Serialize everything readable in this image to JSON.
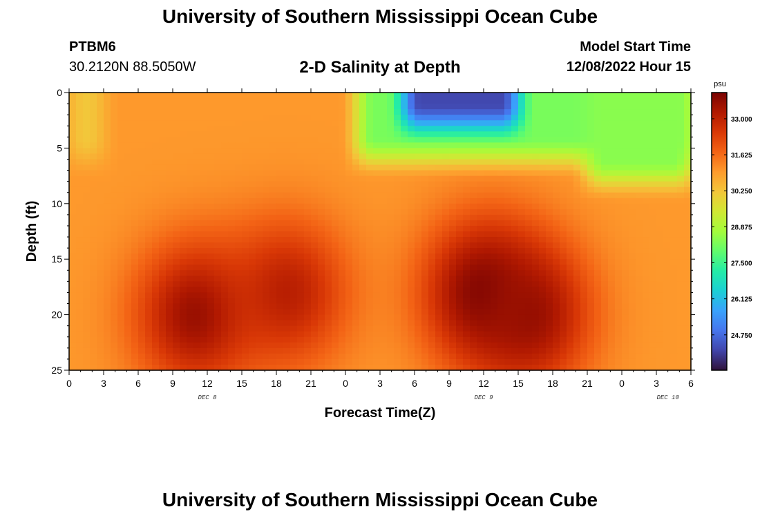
{
  "header": {
    "title": "University of Southern Mississippi Ocean Cube",
    "station_id": "PTBM6",
    "coordinates": "30.2120N  88.5050W",
    "chart_title": "2-D Salinity at Depth",
    "model_start_label": "Model Start Time",
    "model_start_value": "12/08/2022 Hour 15"
  },
  "footer": {
    "title": "University of Southern Mississippi Ocean Cube"
  },
  "colors": {
    "colormap": [
      "#30123b",
      "#4145ab",
      "#4675ed",
      "#39a2fc",
      "#1bcfd4",
      "#24eca6",
      "#61fc6c",
      "#a4fc3b",
      "#d1e834",
      "#f3c63a",
      "#fe9b2d",
      "#f36315",
      "#d93806",
      "#b11901",
      "#7a0402"
    ]
  },
  "chart_data": {
    "type": "heatmap",
    "title": "2-D Salinity at Depth",
    "xlabel": "Forecast Time(Z)",
    "ylabel": "Depth (ft)",
    "x_unit": "hours since Dec 8 00Z",
    "xlim": [
      0,
      54
    ],
    "ylim": [
      0,
      25
    ],
    "x_ticks": [
      0,
      3,
      6,
      9,
      12,
      15,
      18,
      21,
      24,
      27,
      30,
      33,
      36,
      39,
      42,
      45,
      48,
      51,
      54
    ],
    "x_tick_labels": [
      "0",
      "3",
      "6",
      "9",
      "12",
      "15",
      "18",
      "21",
      "0",
      "3",
      "6",
      "9",
      "12",
      "15",
      "18",
      "21",
      "0",
      "3",
      "6"
    ],
    "y_ticks": [
      0,
      5,
      10,
      15,
      20,
      25
    ],
    "y_tick_labels": [
      "0",
      "5",
      "10",
      "15",
      "20",
      "25"
    ],
    "date_labels": [
      {
        "x": 12,
        "text": "DEC 8"
      },
      {
        "x": 36,
        "text": "DEC 9"
      },
      {
        "x": 52,
        "text": "DEC 10"
      }
    ],
    "colorbar": {
      "unit": "psu",
      "min": 23.4,
      "max": 34.0,
      "tick_values": [
        33.0,
        31.625,
        30.25,
        28.875,
        27.5,
        26.125,
        24.75
      ],
      "tick_labels": [
        "33.000",
        "31.625",
        "30.250",
        "28.875",
        "27.500",
        "26.125",
        "24.750"
      ]
    },
    "field": {
      "background": 31.0,
      "surface_fresh_layers": [
        {
          "t_start": 0,
          "t_end": 3,
          "depth_max": 6,
          "value": 30.2
        },
        {
          "t_start": 25,
          "t_end": 54,
          "depth_max": 6,
          "value": 28.2
        },
        {
          "t_start": 29,
          "t_end": 39,
          "depth_max": 3,
          "value": 24.2
        },
        {
          "t_start": 45,
          "t_end": 54,
          "depth_max": 8,
          "value": 28.4
        }
      ],
      "salty_cores": [
        {
          "t_center": 11,
          "depth_center": 20,
          "value": 33.6
        },
        {
          "t_center": 19,
          "depth_center": 18,
          "value": 33.1
        },
        {
          "t_center": 36,
          "depth_center": 18,
          "value": 34.0
        },
        {
          "t_center": 40,
          "depth_center": 20,
          "value": 33.6
        }
      ]
    }
  }
}
